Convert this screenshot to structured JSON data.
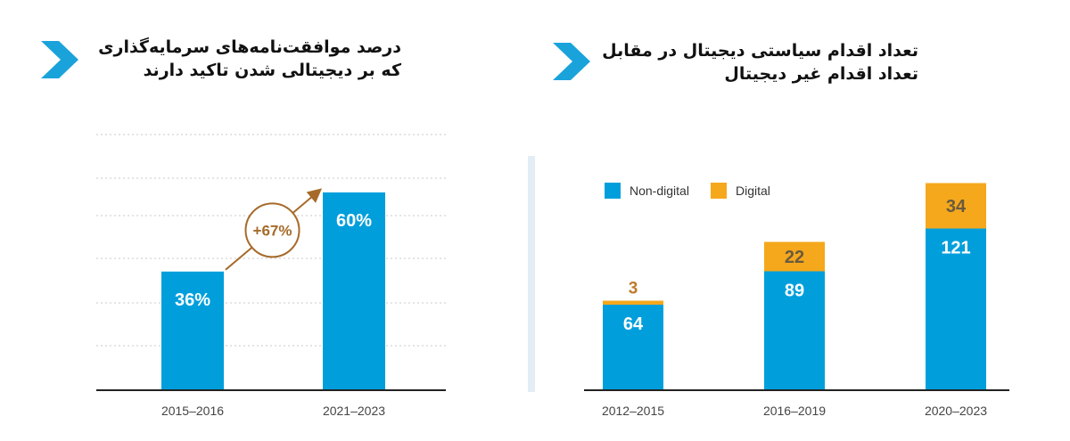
{
  "colors": {
    "blue": "#009fdc",
    "orange": "#f5a81c",
    "brown_arrow": "#a66b2a",
    "chevron": "#1aa3db",
    "grid": "#c9c9c9",
    "axis": "#222222",
    "value_dark": "#6a5a3e",
    "value_small": "#c07a2a",
    "divider": "#e3edf5"
  },
  "icons": {
    "section_marker": "chevron-right-icon"
  },
  "panels": [
    {
      "title_lines": [
        "درصد موافقت‌نامه‌های سرمایه‌گذاری",
        "که بر دیجیتالی شدن تاکید دارند"
      ]
    },
    {
      "title_lines": [
        "تعداد اقدام سیاستی دیجیتال در مقابل",
        "تعداد اقدام غیر دیجیتال"
      ]
    }
  ],
  "chart_data": [
    {
      "type": "bar",
      "categories": [
        "2015–2016",
        "2021–2023"
      ],
      "values": [
        36,
        60
      ],
      "value_labels": [
        "36%",
        "60%"
      ],
      "ylim": [
        0,
        60
      ],
      "grid": true,
      "annotation": {
        "text": "+67%",
        "from": "2015–2016",
        "to": "2021–2023"
      }
    },
    {
      "type": "bar",
      "stacked": true,
      "categories": [
        "2012–2015",
        "2016–2019",
        "2020–2023"
      ],
      "series": [
        {
          "name": "Non-digital",
          "values": [
            64,
            89,
            121
          ]
        },
        {
          "name": "Digital",
          "values": [
            3,
            22,
            34
          ]
        }
      ],
      "legend": {
        "position": "top-left",
        "entries": [
          "Non-digital",
          "Digital"
        ]
      },
      "ylim": [
        0,
        155
      ],
      "grid": false
    }
  ]
}
